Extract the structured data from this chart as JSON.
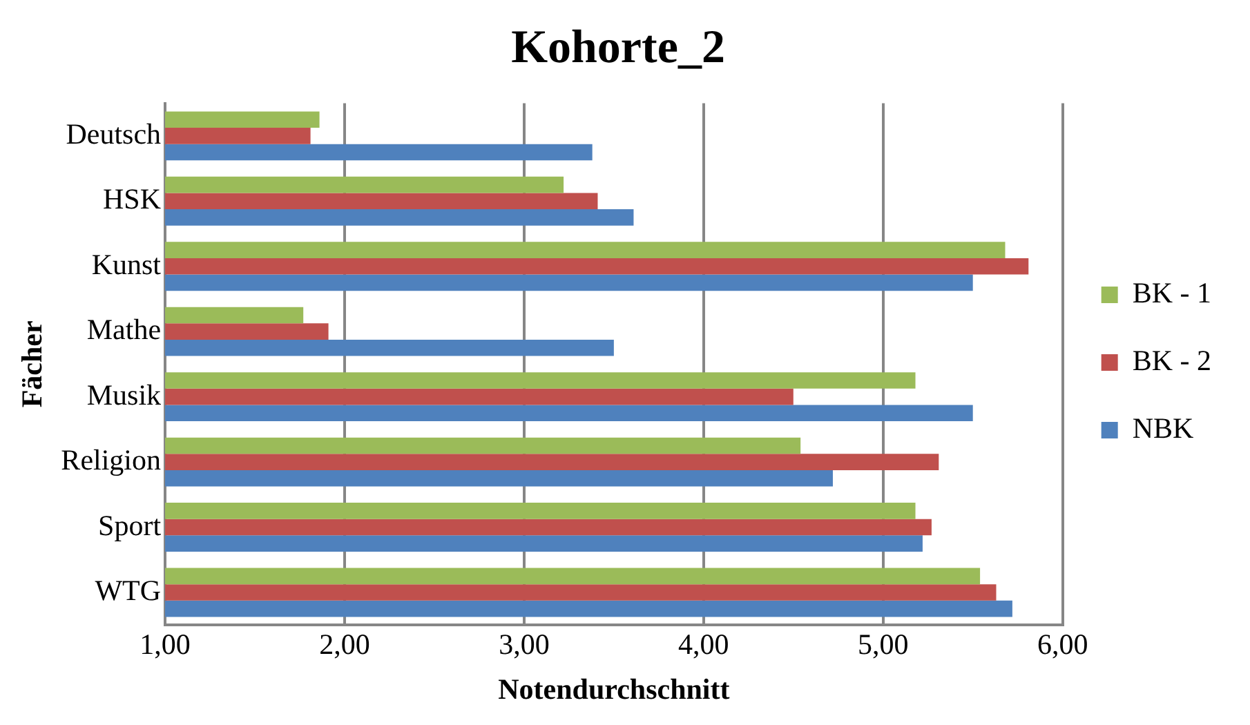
{
  "chart_data": {
    "type": "bar",
    "orientation": "horizontal",
    "title": "Kohorte_2",
    "xlabel": "Notendurchschnitt",
    "ylabel": "Fächer",
    "categories": [
      "Deutsch",
      "HSK",
      "Kunst",
      "Mathe",
      "Musik",
      "Religion",
      "Sport",
      "WTG"
    ],
    "series": [
      {
        "name": "BK - 1",
        "color": "#9bbb59",
        "values": [
          1.86,
          3.22,
          5.68,
          1.77,
          5.18,
          4.54,
          5.18,
          5.54
        ]
      },
      {
        "name": "BK - 2",
        "color": "#c0504d",
        "values": [
          1.81,
          3.41,
          5.81,
          1.91,
          4.5,
          5.31,
          5.27,
          5.63
        ]
      },
      {
        "name": "NBK",
        "color": "#4f81bd",
        "values": [
          3.38,
          3.61,
          5.5,
          3.5,
          5.5,
          4.72,
          5.22,
          5.72
        ]
      }
    ],
    "xlim": [
      1,
      6
    ],
    "xticks": [
      {
        "value": 1,
        "label": "1,00"
      },
      {
        "value": 2,
        "label": "2,00"
      },
      {
        "value": 3,
        "label": "3,00"
      },
      {
        "value": 4,
        "label": "4,00"
      },
      {
        "value": 5,
        "label": "5,00"
      },
      {
        "value": 6,
        "label": "6,00"
      }
    ],
    "grid": "x",
    "legend": "right"
  }
}
